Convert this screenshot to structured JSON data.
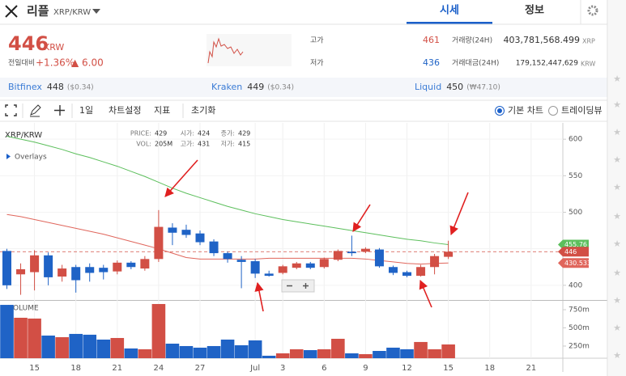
{
  "header": {
    "name": "리플",
    "pair": "XRP/KRW",
    "tabs": [
      "시세",
      "정보"
    ]
  },
  "price": {
    "value": "446",
    "unit": "KRW",
    "change_label": "전일대비",
    "change_pct": "+1.36%",
    "change_abs": "▲ 6.00"
  },
  "stats": {
    "high_label": "고가",
    "high": "461",
    "low_label": "저가",
    "low": "436",
    "volume_label": "거래량(24H)",
    "volume": "403,781,568.499",
    "volume_unit": "XRP",
    "turnover_label": "거래대금(24H)",
    "turnover": "179,152,447,629",
    "turnover_unit": "KRW"
  },
  "exchanges": [
    {
      "name": "Bitfinex",
      "price": "448",
      "quote": "($0.34)"
    },
    {
      "name": "Kraken",
      "price": "449",
      "quote": "($0.34)"
    },
    {
      "name": "Liquid",
      "price": "450",
      "quote": "(₩47.10)"
    }
  ],
  "toolbar": {
    "interval": "1일",
    "settings": "차트설정",
    "indicators": "지표",
    "reset": "초기화",
    "views": [
      "기본 차트",
      "트레이딩뷰"
    ]
  },
  "chart_data": {
    "type": "candlestick",
    "title": "XRP/KRW",
    "overlay_label": "Overlays",
    "info": [
      [
        "PRICE:",
        "429"
      ],
      [
        "시가:",
        "424"
      ],
      [
        "종가:",
        "429"
      ],
      [
        "VOL:",
        "205M"
      ],
      [
        "고가:",
        "431"
      ],
      [
        "저가:",
        "415"
      ]
    ],
    "open": [
      447,
      415,
      418,
      441,
      412,
      425,
      425,
      424,
      419,
      431,
      423,
      436,
      479,
      476,
      471,
      460,
      444,
      435,
      433,
      416,
      417,
      424,
      430,
      425,
      435,
      446,
      446,
      449,
      425,
      418,
      413,
      425,
      439
    ],
    "high": [
      450,
      430,
      448,
      445,
      428,
      428,
      430,
      428,
      434,
      433,
      440,
      503,
      485,
      483,
      475,
      463,
      446,
      440,
      436,
      420,
      428,
      432,
      432,
      438,
      449,
      468,
      452,
      451,
      427,
      420,
      428,
      443,
      461
    ],
    "low": [
      395,
      387,
      393,
      400,
      405,
      390,
      405,
      408,
      415,
      422,
      420,
      432,
      455,
      465,
      455,
      440,
      431,
      396,
      410,
      412,
      415,
      422,
      422,
      423,
      433,
      440,
      444,
      424,
      414,
      411,
      412,
      415,
      436
    ],
    "close": [
      400,
      422,
      441,
      411,
      423,
      407,
      417,
      418,
      431,
      425,
      436,
      480,
      472,
      469,
      459,
      444,
      436,
      432,
      416,
      413,
      426,
      430,
      424,
      436,
      447,
      444,
      450,
      426,
      417,
      413,
      425,
      440,
      446
    ],
    "up_color": "#d24f45",
    "down_color": "#1f63c6",
    "xlim": [
      -0.5,
      40.3
    ],
    "xticks": [
      {
        "value": 2,
        "label": "15"
      },
      {
        "value": 5,
        "label": "18"
      },
      {
        "value": 8,
        "label": "21"
      },
      {
        "value": 11,
        "label": "24"
      },
      {
        "value": 14,
        "label": "27"
      },
      {
        "value": 18,
        "label": "Jul"
      },
      {
        "value": 20,
        "label": "3"
      },
      {
        "value": 23,
        "label": "6"
      },
      {
        "value": 26,
        "label": "9"
      },
      {
        "value": 29,
        "label": "12"
      },
      {
        "value": 32,
        "label": "15"
      },
      {
        "value": 35,
        "label": "18"
      },
      {
        "value": 38,
        "label": "21"
      }
    ],
    "ylim": [
      381,
      619
    ],
    "yticks": [
      400,
      450,
      500,
      550,
      600
    ],
    "grid": true,
    "moving_averages": [
      {
        "color": "#5cbf5c",
        "values": [
          604,
          600,
          596,
          591,
          586,
          580,
          575,
          569,
          563,
          556,
          549,
          541,
          533,
          526,
          520,
          514,
          508,
          503,
          498,
          494,
          490,
          487,
          484,
          481,
          478,
          475,
          472,
          469,
          466,
          463,
          461,
          458,
          455.76
        ]
      },
      {
        "color": "#e0665c",
        "values": [
          497,
          494,
          490,
          486,
          482,
          478,
          474,
          470,
          465,
          460,
          455,
          450,
          444,
          438,
          436,
          436,
          436,
          436,
          436,
          437,
          437,
          437,
          437,
          437,
          437,
          437,
          436,
          434,
          432,
          430,
          429,
          430,
          430.533
        ]
      }
    ],
    "last_price": 446,
    "last_price_color": "#d24f45",
    "volume": {
      "label": "VOLUME",
      "values": [
        816,
        639,
        628,
        394,
        372,
        417,
        406,
        339,
        361,
        217,
        206,
        828,
        283,
        250,
        228,
        250,
        339,
        261,
        328,
        117,
        150,
        206,
        194,
        206,
        350,
        150,
        139,
        183,
        228,
        206,
        306,
        206,
        272
      ],
      "ylim": [
        83,
        861
      ],
      "yticks": [
        {
          "value": 250,
          "label": "250m"
        },
        {
          "value": 500,
          "label": "500m"
        },
        {
          "value": 750,
          "label": "750m"
        }
      ]
    }
  }
}
